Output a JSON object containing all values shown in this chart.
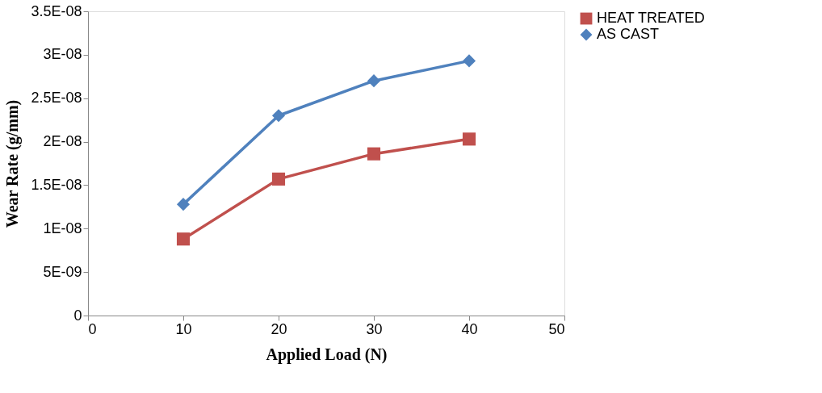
{
  "chart_data": {
    "type": "line",
    "xlabel": "Applied Load (N)",
    "ylabel": "Wear Rate (g/mm)",
    "x": [
      10,
      20,
      30,
      40
    ],
    "series": [
      {
        "name": "HEAT TREATED",
        "color": "#c0504d",
        "marker": "square",
        "values": [
          8.8e-09,
          1.57e-08,
          1.86e-08,
          2.03e-08
        ]
      },
      {
        "name": "AS CAST",
        "color": "#4f81bd",
        "marker": "diamond",
        "values": [
          1.28e-08,
          2.3e-08,
          2.7e-08,
          2.93e-08
        ]
      }
    ],
    "xlim": [
      0,
      50
    ],
    "xticks": [
      0,
      10,
      20,
      30,
      40,
      50
    ],
    "ylim": [
      0,
      3.5e-08
    ],
    "yticks": [
      0,
      {
        "value": 5e-09,
        "label": "5E-09"
      },
      {
        "value": 1e-08,
        "label": "1E-08"
      },
      {
        "value": 1.5e-08,
        "label": "1.5E-08"
      },
      {
        "value": 2e-08,
        "label": "2E-08"
      },
      {
        "value": 2.5e-08,
        "label": "2.5E-08"
      },
      {
        "value": 3e-08,
        "label": "3E-08"
      },
      {
        "value": 3.5e-08,
        "label": "3.5E-08"
      }
    ],
    "grid": false,
    "legend": "right",
    "line_style": "solid"
  }
}
